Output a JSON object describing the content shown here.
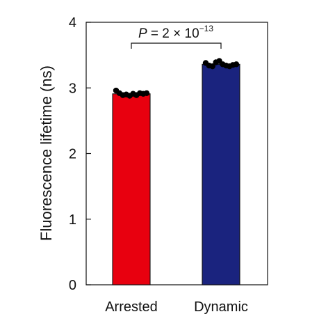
{
  "chart_data": {
    "type": "bar",
    "title": "",
    "xlabel": "",
    "ylabel": "Fluorescence lifetime (ns)",
    "ylim": [
      0,
      4
    ],
    "yticks": [
      "0",
      "1",
      "2",
      "3",
      "4"
    ],
    "grid": false,
    "categories": [
      "Arrested",
      "Dynamic"
    ],
    "values": [
      2.91,
      3.36
    ],
    "bar_colors": [
      "#e8000f",
      "#1a237e"
    ],
    "points": [
      [
        2.96,
        2.92,
        2.89,
        2.9,
        2.88,
        2.91,
        2.89,
        2.92,
        2.91,
        2.92
      ],
      [
        3.38,
        3.34,
        3.33,
        3.39,
        3.41,
        3.36,
        3.34,
        3.33,
        3.35,
        3.36
      ]
    ],
    "annotation": {
      "text_prefix": "P",
      "text_mid": " = 2 × 10",
      "text_exp": "−13"
    }
  }
}
